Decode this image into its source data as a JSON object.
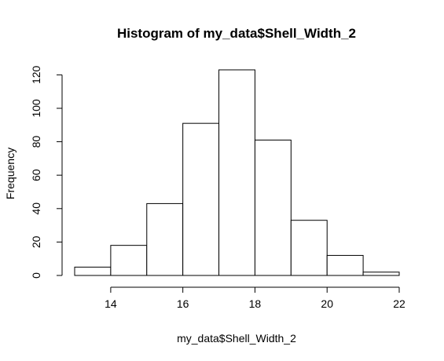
{
  "chart_data": {
    "type": "bar",
    "title": "Histogram of my_data$Shell_Width_2",
    "xlabel": "my_data$Shell_Width_2",
    "ylabel": "Frequency",
    "bins": [
      {
        "start": 13,
        "end": 14,
        "count": 5
      },
      {
        "start": 14,
        "end": 15,
        "count": 18
      },
      {
        "start": 15,
        "end": 16,
        "count": 43
      },
      {
        "start": 16,
        "end": 17,
        "count": 91
      },
      {
        "start": 17,
        "end": 18,
        "count": 123
      },
      {
        "start": 18,
        "end": 19,
        "count": 81
      },
      {
        "start": 19,
        "end": 20,
        "count": 33
      },
      {
        "start": 20,
        "end": 21,
        "count": 12
      },
      {
        "start": 21,
        "end": 22,
        "count": 2
      }
    ],
    "xlim": [
      13,
      22
    ],
    "ylim": [
      0,
      123
    ],
    "xticks": [
      14,
      16,
      18,
      20,
      22
    ],
    "yticks": [
      0,
      20,
      40,
      60,
      80,
      100,
      120
    ],
    "grid": false,
    "colors": {
      "fill": "#ffffff",
      "stroke": "#000000"
    }
  }
}
